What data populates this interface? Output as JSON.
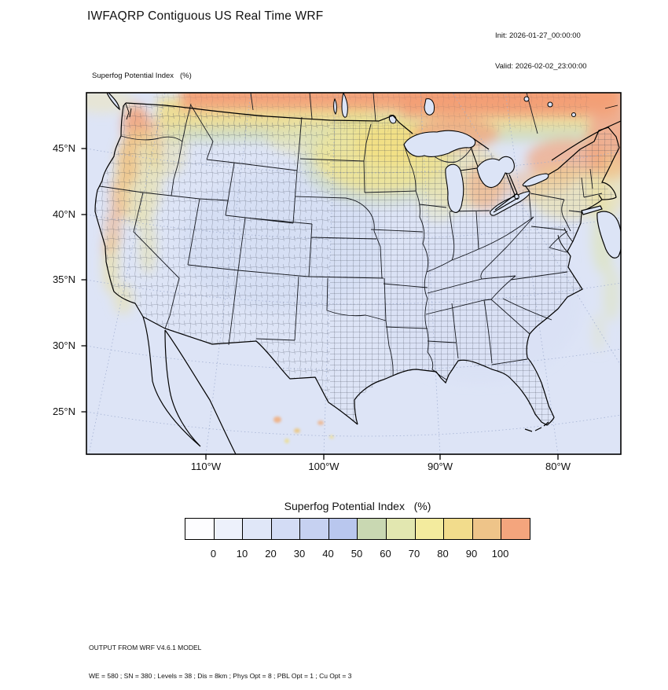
{
  "header": {
    "title": "IWFAQRP Contiguous US Real Time WRF",
    "init_line": "Init: 2026-01-27_00:00:00",
    "valid_line": "Valid: 2026-02-02_23:00:00"
  },
  "map": {
    "field_label": "Superfog Potential Index   (%)",
    "lat_ticks": [
      "45°N",
      "40°N",
      "35°N",
      "30°N",
      "25°N"
    ],
    "lon_ticks": [
      "110°W",
      "100°W",
      "90°W",
      "80°W"
    ]
  },
  "legend": {
    "title": "Superfog Potential Index   (%)",
    "ticks": [
      "0",
      "10",
      "20",
      "30",
      "40",
      "50",
      "60",
      "70",
      "80",
      "90",
      "100"
    ],
    "colors": [
      "#fdfdff",
      "#edf1fb",
      "#e0e7f8",
      "#d3dcf5",
      "#c6d1f1",
      "#b9c7ee",
      "#c9d8b2",
      "#e2e7b0",
      "#f3eb9e",
      "#f2dc8c",
      "#eec489",
      "#f4a57d"
    ]
  },
  "footer": {
    "line1": "OUTPUT FROM WRF V4.6.1 MODEL",
    "line2": "WE = 580 ; SN = 380 ; Levels = 38 ; Dis = 8km ; Phys Opt = 8 ; PBL Opt = 1 ; Cu Opt = 3"
  },
  "colors": {
    "map_base": "#dde4f6",
    "canada_high": "#f3a47c",
    "mid_yellow": "#f0e492",
    "grid_line": "#9fadd0"
  }
}
